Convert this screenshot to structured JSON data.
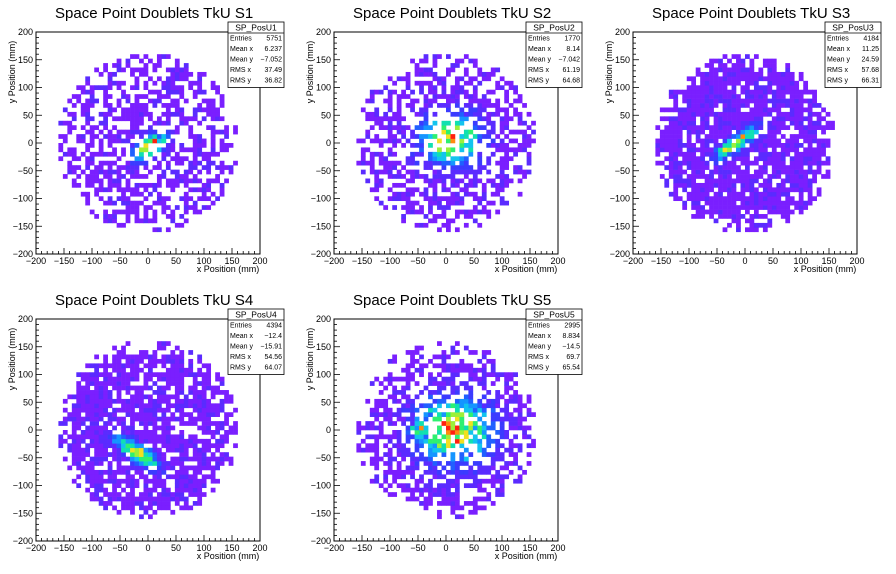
{
  "chart_data": [
    {
      "type": "heatmap",
      "title": "Space Point Doublets TkU S1",
      "xlabel": "x Position (mm)",
      "ylabel": "y Position (mm)",
      "xlim": [
        -200,
        200
      ],
      "ylim": [
        -200,
        200
      ],
      "xticks": [
        "−200",
        "−150",
        "−100",
        "−50",
        "0",
        "50",
        "100",
        "150",
        "200"
      ],
      "yticks": [
        "−200",
        "−150",
        "−100",
        "−50",
        "0",
        "50",
        "100",
        "150",
        "200"
      ],
      "stats": {
        "name": "SP_PosU1",
        "rows": [
          {
            "label": "Entries",
            "value": "5751"
          },
          {
            "label": "Mean x",
            "value": "6.237"
          },
          {
            "label": "Mean y",
            "value": "−7.052"
          },
          {
            "label": "RMS x",
            "value": "37.49"
          },
          {
            "label": "RMS y",
            "value": "36.82"
          }
        ]
      },
      "distribution": {
        "radius": 162,
        "peak": [
          5,
          -5
        ],
        "spread": 22,
        "tilt": 38,
        "elong": 1.8,
        "density": 0.55,
        "peak2": null
      }
    },
    {
      "type": "heatmap",
      "title": "Space Point Doublets TkU S2",
      "xlabel": "x Position (mm)",
      "ylabel": "y Position (mm)",
      "xlim": [
        -200,
        200
      ],
      "ylim": [
        -200,
        200
      ],
      "xticks": [
        "−200",
        "−150",
        "−100",
        "−50",
        "0",
        "50",
        "100",
        "150",
        "200"
      ],
      "yticks": [
        "−200",
        "−150",
        "−100",
        "−50",
        "0",
        "50",
        "100",
        "150",
        "200"
      ],
      "stats": {
        "name": "SP_PosU2",
        "rows": [
          {
            "label": "Entries",
            "value": "1770"
          },
          {
            "label": "Mean x",
            "value": "8.14"
          },
          {
            "label": "Mean y",
            "value": "−7.042"
          },
          {
            "label": "RMS x",
            "value": "61.19"
          },
          {
            "label": "RMS y",
            "value": "64.68"
          }
        ]
      },
      "distribution": {
        "radius": 162,
        "peak": [
          8,
          8
        ],
        "spread": 35,
        "tilt": 0,
        "elong": 1.2,
        "density": 0.55,
        "peak2": null
      }
    },
    {
      "type": "heatmap",
      "title": "Space Point Doublets TkU S3",
      "xlabel": "x Position (mm)",
      "ylabel": "y Position (mm)",
      "xlim": [
        -200,
        200
      ],
      "ylim": [
        -200,
        200
      ],
      "xticks": [
        "−200",
        "−150",
        "−100",
        "−50",
        "0",
        "50",
        "100",
        "150",
        "200"
      ],
      "yticks": [
        "−200",
        "−150",
        "−100",
        "−50",
        "0",
        "50",
        "100",
        "150",
        "200"
      ],
      "stats": {
        "name": "SP_PosU3",
        "rows": [
          {
            "label": "Entries",
            "value": "4184"
          },
          {
            "label": "Mean x",
            "value": "11.25"
          },
          {
            "label": "Mean y",
            "value": "24.59"
          },
          {
            "label": "RMS x",
            "value": "57.68"
          },
          {
            "label": "RMS y",
            "value": "66.31"
          }
        ]
      },
      "distribution": {
        "radius": 162,
        "peak": [
          -15,
          0
        ],
        "spread": 30,
        "tilt": 35,
        "elong": 3.5,
        "density": 0.85,
        "peak2": null
      }
    },
    {
      "type": "heatmap",
      "title": "Space Point Doublets TkU S4",
      "xlabel": "x Position (mm)",
      "ylabel": "y Position (mm)",
      "xlim": [
        -200,
        200
      ],
      "ylim": [
        -200,
        200
      ],
      "xticks": [
        "−200",
        "−150",
        "−100",
        "−50",
        "0",
        "50",
        "100",
        "150",
        "200"
      ],
      "yticks": [
        "−200",
        "−150",
        "−100",
        "−50",
        "0",
        "50",
        "100",
        "150",
        "200"
      ],
      "stats": {
        "name": "SP_PosU4",
        "rows": [
          {
            "label": "Entries",
            "value": "4394"
          },
          {
            "label": "Mean x",
            "value": "−12.4"
          },
          {
            "label": "Mean y",
            "value": "−15.91"
          },
          {
            "label": "RMS x",
            "value": "54.56"
          },
          {
            "label": "RMS y",
            "value": "64.07"
          }
        ]
      },
      "distribution": {
        "radius": 162,
        "peak": [
          -20,
          -40
        ],
        "spread": 30,
        "tilt": -35,
        "elong": 3.0,
        "density": 0.8,
        "peak2": null
      }
    },
    {
      "type": "heatmap",
      "title": "Space Point Doublets TkU S5",
      "xlabel": "x Position (mm)",
      "ylabel": "y Position (mm)",
      "xlim": [
        -200,
        200
      ],
      "ylim": [
        -200,
        200
      ],
      "xticks": [
        "−200",
        "−150",
        "−100",
        "−50",
        "0",
        "50",
        "100",
        "150",
        "200"
      ],
      "yticks": [
        "−200",
        "−150",
        "−100",
        "−50",
        "0",
        "50",
        "100",
        "150",
        "200"
      ],
      "stats": {
        "name": "SP_PosU5",
        "rows": [
          {
            "label": "Entries",
            "value": "2995"
          },
          {
            "label": "Mean x",
            "value": "8.834"
          },
          {
            "label": "Mean y",
            "value": "−14.5"
          },
          {
            "label": "RMS x",
            "value": "69.7"
          },
          {
            "label": "RMS y",
            "value": "65.54"
          }
        ]
      },
      "distribution": {
        "radius": 162,
        "peak": [
          15,
          0
        ],
        "spread": 45,
        "tilt": 0,
        "elong": 1.2,
        "density": 0.6,
        "peak2": [
          -45,
          0
        ]
      }
    }
  ]
}
